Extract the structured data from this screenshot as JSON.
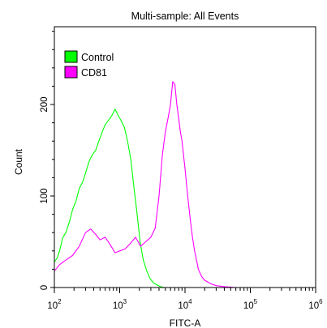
{
  "chart_data": {
    "type": "line",
    "title": "Multi-sample: All Events",
    "xlabel": "FITC-A",
    "ylabel": "Count",
    "x_scale": "log",
    "xlim": [
      100,
      1000000
    ],
    "ylim": [
      0,
      285
    ],
    "x_ticks": [
      {
        "value": 100,
        "base": "10",
        "exp": "2"
      },
      {
        "value": 1000,
        "base": "10",
        "exp": "3"
      },
      {
        "value": 10000,
        "base": "10",
        "exp": "4"
      },
      {
        "value": 100000,
        "base": "10",
        "exp": "5"
      },
      {
        "value": 1000000,
        "base": "10",
        "exp": "6"
      }
    ],
    "y_ticks": [
      0,
      100,
      200
    ],
    "legend_position": "top-left",
    "grid": false,
    "series": [
      {
        "name": "Control",
        "color": "#00ff00",
        "x": [
          100,
          110,
          120,
          135,
          150,
          170,
          190,
          215,
          240,
          270,
          300,
          340,
          380,
          430,
          480,
          540,
          600,
          680,
          760,
          850,
          950,
          1060,
          1180,
          1320,
          1480,
          1650,
          1850,
          2050,
          2300,
          2600,
          2900,
          3300,
          3700,
          4200,
          4800,
          5500
        ],
        "values": [
          28,
          32,
          40,
          55,
          60,
          72,
          85,
          95,
          108,
          115,
          125,
          138,
          145,
          150,
          160,
          170,
          178,
          183,
          188,
          195,
          188,
          182,
          175,
          160,
          140,
          110,
          80,
          50,
          30,
          18,
          10,
          5,
          3,
          1,
          0,
          0
        ]
      },
      {
        "name": "CD81",
        "color": "#ff00ff",
        "x": [
          100,
          120,
          150,
          190,
          240,
          300,
          360,
          430,
          500,
          600,
          700,
          850,
          1000,
          1200,
          1450,
          1750,
          2100,
          2500,
          3000,
          3500,
          4000,
          4500,
          5000,
          5500,
          6000,
          6500,
          7000,
          7500,
          8000,
          8500,
          9000,
          10000,
          11000,
          12000,
          13000,
          14000,
          15000,
          16000,
          18000,
          20000,
          25000,
          30000,
          40000,
          60000
        ],
        "values": [
          18,
          25,
          30,
          35,
          45,
          60,
          64,
          58,
          52,
          55,
          48,
          38,
          40,
          42,
          48,
          55,
          45,
          50,
          55,
          65,
          100,
          145,
          170,
          185,
          200,
          225,
          222,
          200,
          185,
          170,
          160,
          130,
          100,
          75,
          55,
          40,
          30,
          20,
          12,
          8,
          4,
          2,
          1,
          0
        ]
      }
    ]
  }
}
